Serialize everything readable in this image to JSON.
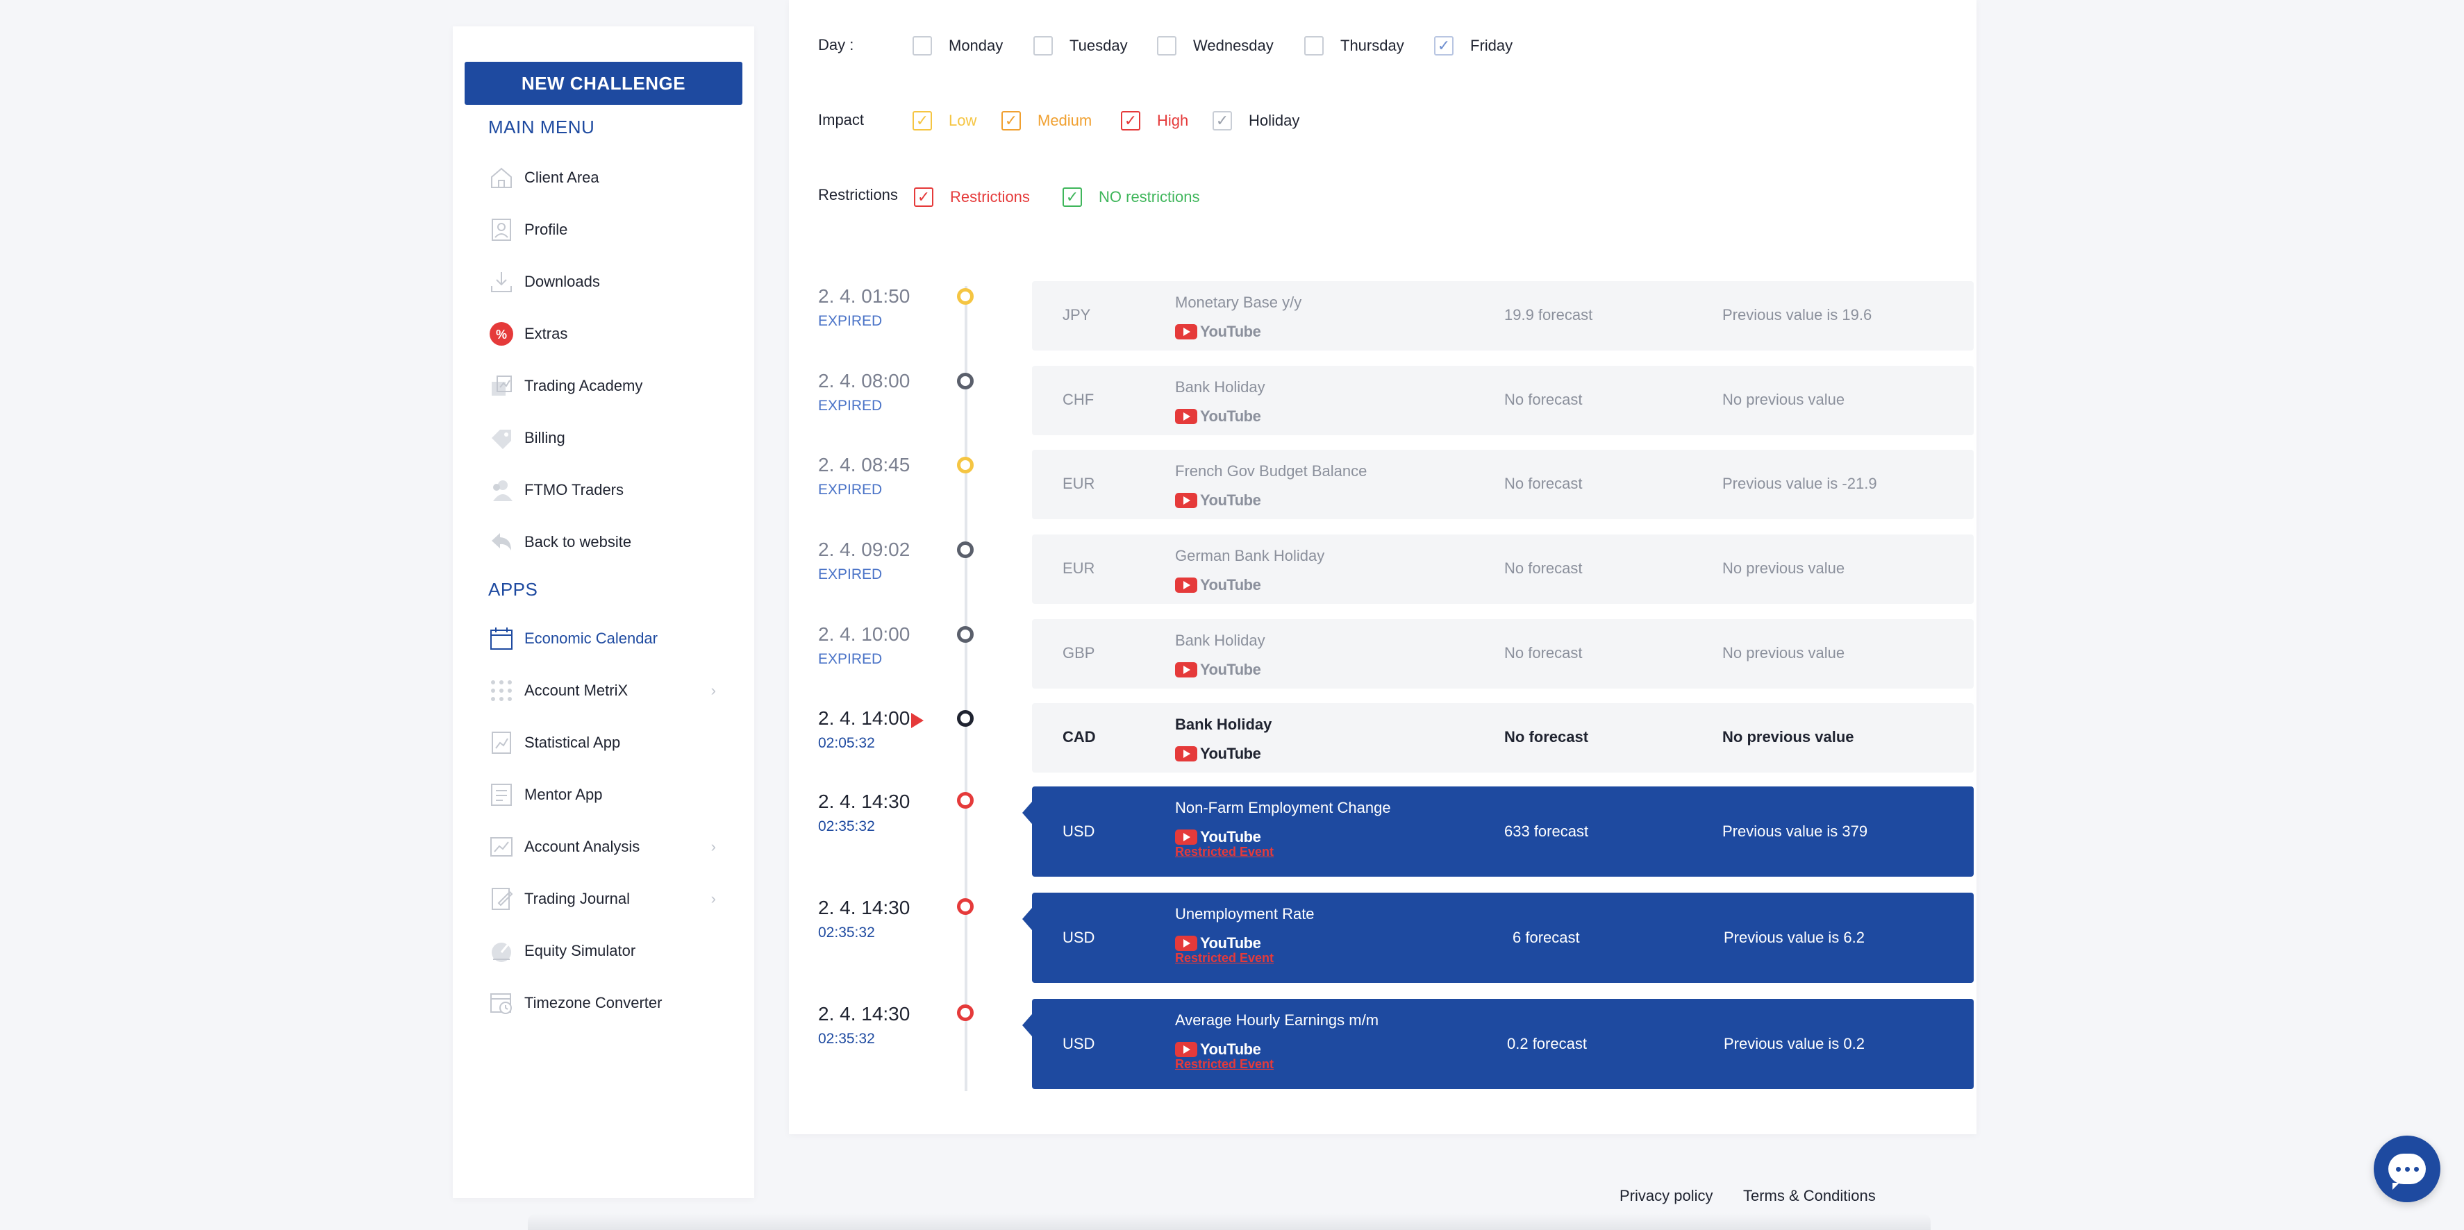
{
  "sidebar": {
    "new_challenge": "NEW CHALLENGE",
    "main_menu_title": "MAIN MENU",
    "main_menu": [
      {
        "label": "Client Area",
        "icon": "home-icon"
      },
      {
        "label": "Profile",
        "icon": "profile-icon"
      },
      {
        "label": "Downloads",
        "icon": "download-icon"
      },
      {
        "label": "Extras",
        "icon": "percent-icon"
      },
      {
        "label": "Trading Academy",
        "icon": "academy-icon"
      },
      {
        "label": "Billing",
        "icon": "billing-icon"
      },
      {
        "label": "FTMO Traders",
        "icon": "traders-icon"
      },
      {
        "label": "Back to website",
        "icon": "back-arrow-icon"
      }
    ],
    "apps_title": "APPS",
    "apps": [
      {
        "label": "Economic Calendar",
        "icon": "calendar-icon",
        "active": true
      },
      {
        "label": "Account MetriX",
        "icon": "metrix-icon",
        "chevron": true
      },
      {
        "label": "Statistical App",
        "icon": "stats-icon"
      },
      {
        "label": "Mentor App",
        "icon": "mentor-icon"
      },
      {
        "label": "Account Analysis",
        "icon": "analysis-icon",
        "chevron": true
      },
      {
        "label": "Trading Journal",
        "icon": "journal-icon",
        "chevron": true
      },
      {
        "label": "Equity Simulator",
        "icon": "simulator-icon"
      },
      {
        "label": "Timezone Converter",
        "icon": "timezone-icon"
      }
    ]
  },
  "filters": {
    "day_label": "Day :",
    "days": [
      {
        "label": "Monday",
        "checked": false
      },
      {
        "label": "Tuesday",
        "checked": false
      },
      {
        "label": "Wednesday",
        "checked": false
      },
      {
        "label": "Thursday",
        "checked": false
      },
      {
        "label": "Friday",
        "checked": true
      }
    ],
    "impact_label": "Impact",
    "impacts": [
      {
        "label": "Low",
        "checked": true,
        "color": "#f5c542"
      },
      {
        "label": "Medium",
        "checked": true,
        "color": "#f0a030"
      },
      {
        "label": "High",
        "checked": true,
        "color": "#e53a3a"
      },
      {
        "label": "Holiday",
        "checked": true,
        "color": "#9aa0ab"
      }
    ],
    "restrictions_label": "Restrictions",
    "restrictions": [
      {
        "label": "Restrictions",
        "checked": true,
        "color": "#e53a3a"
      },
      {
        "label": "NO restrictions",
        "checked": true,
        "color": "#3fb65b"
      }
    ]
  },
  "events": [
    {
      "time": "2. 4. 01:50",
      "sub": "EXPIRED",
      "state": "expired",
      "dot": "#f5c542",
      "currency": "JPY",
      "name": "Monetary Base y/y",
      "forecast": "19.9 forecast",
      "previous": "Previous value is 19.6"
    },
    {
      "time": "2. 4. 08:00",
      "sub": "EXPIRED",
      "state": "expired",
      "dot": "#5a5f6b",
      "currency": "CHF",
      "name": "Bank Holiday",
      "forecast": "No forecast",
      "previous": "No previous value"
    },
    {
      "time": "2. 4. 08:45",
      "sub": "EXPIRED",
      "state": "expired",
      "dot": "#f5c542",
      "currency": "EUR",
      "name": "French Gov Budget Balance",
      "forecast": "No forecast",
      "previous": "Previous value is -21.9"
    },
    {
      "time": "2. 4. 09:02",
      "sub": "EXPIRED",
      "state": "expired",
      "dot": "#5a5f6b",
      "currency": "EUR",
      "name": "German Bank Holiday",
      "forecast": "No forecast",
      "previous": "No previous value"
    },
    {
      "time": "2. 4. 10:00",
      "sub": "EXPIRED",
      "state": "expired",
      "dot": "#5a5f6b",
      "currency": "GBP",
      "name": "Bank Holiday",
      "forecast": "No forecast",
      "previous": "No previous value"
    },
    {
      "time": "2. 4. 14:00",
      "sub": "02:05:32",
      "state": "current",
      "dot": "#1f2330",
      "currency": "CAD",
      "name": "Bank Holiday",
      "forecast": "No forecast",
      "previous": "No previous value"
    },
    {
      "time": "2. 4. 14:30",
      "sub": "02:35:32",
      "state": "restricted",
      "dot": "#e53a3a",
      "currency": "USD",
      "name": "Non-Farm Employment Change",
      "forecast": "633 forecast",
      "previous": "Previous value is 379",
      "restricted_label": "Restricted Event"
    },
    {
      "time": "2. 4. 14:30",
      "sub": "02:35:32",
      "state": "restricted",
      "dot": "#e53a3a",
      "currency": "USD",
      "name": "Unemployment Rate",
      "forecast": "6 forecast",
      "previous": "Previous value is 6.2",
      "restricted_label": "Restricted Event"
    },
    {
      "time": "2. 4. 14:30",
      "sub": "02:35:32",
      "state": "restricted",
      "dot": "#e53a3a",
      "currency": "USD",
      "name": "Average Hourly Earnings m/m",
      "forecast": "0.2 forecast",
      "previous": "Previous value is 0.2",
      "restricted_label": "Restricted Event"
    }
  ],
  "youtube_label": "YouTube",
  "footer": {
    "privacy": "Privacy policy",
    "terms": "Terms & Conditions"
  },
  "colors": {
    "brand": "#1e4aa0",
    "danger": "#e53a3a",
    "success": "#3fb65b"
  }
}
